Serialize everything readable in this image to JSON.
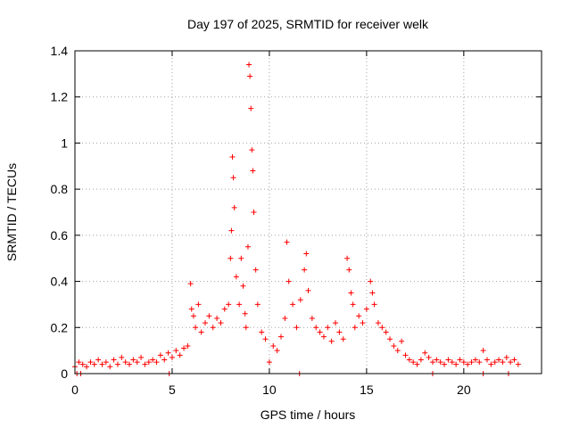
{
  "chart_data": {
    "type": "scatter",
    "title": "Day 197 of 2025, SRMTID for receiver welk",
    "xlabel": "GPS time / hours",
    "ylabel": "SRMTID / TECUs",
    "xlim": [
      0,
      24
    ],
    "ylim": [
      0,
      1.4
    ],
    "xticks": [
      0,
      5,
      10,
      15,
      20
    ],
    "xtick_labels": [
      "0",
      "5",
      "10",
      "15",
      "20"
    ],
    "yticks": [
      0,
      0.2,
      0.4,
      0.6,
      0.8,
      1.0,
      1.2,
      1.4
    ],
    "ytick_labels": [
      "0",
      "0.2",
      "0.4",
      "0.6",
      "0.8",
      "1",
      "1.2",
      "1.4"
    ],
    "grid": true,
    "marker": "+",
    "color": "#ff0000",
    "series": [
      {
        "name": "SRMTID",
        "x": [
          0.0,
          0.2,
          0.4,
          0.6,
          0.8,
          1.0,
          1.2,
          1.4,
          1.6,
          1.8,
          2.0,
          2.2,
          2.4,
          2.6,
          2.8,
          3.0,
          3.2,
          3.4,
          3.6,
          3.8,
          4.0,
          4.2,
          4.4,
          4.6,
          4.8,
          5.0,
          5.2,
          5.4,
          5.6,
          5.8,
          5.95,
          6.0,
          6.1,
          6.2,
          6.35,
          6.5,
          6.7,
          6.9,
          7.1,
          7.3,
          7.5,
          7.7,
          7.9,
          8.0,
          8.05,
          8.1,
          8.15,
          8.2,
          8.3,
          8.45,
          8.55,
          8.65,
          8.75,
          8.8,
          8.9,
          8.95,
          9.0,
          9.05,
          9.1,
          9.15,
          9.2,
          9.3,
          9.4,
          9.6,
          9.8,
          10.0,
          10.2,
          10.4,
          10.6,
          10.8,
          10.9,
          11.0,
          11.2,
          11.4,
          11.6,
          11.8,
          11.9,
          12.0,
          12.2,
          12.4,
          12.6,
          12.8,
          13.0,
          13.2,
          13.4,
          13.6,
          13.8,
          14.0,
          14.1,
          14.2,
          14.3,
          14.4,
          14.6,
          14.8,
          15.0,
          15.2,
          15.3,
          15.4,
          15.6,
          15.8,
          16.0,
          16.2,
          16.4,
          16.6,
          16.8,
          17.0,
          17.2,
          17.4,
          17.6,
          17.8,
          18.0,
          18.2,
          18.4,
          18.6,
          18.8,
          19.0,
          19.2,
          19.4,
          19.6,
          19.8,
          20.0,
          20.2,
          20.4,
          20.6,
          20.8,
          21.0,
          21.2,
          21.4,
          21.6,
          21.8,
          22.0,
          22.2,
          22.4,
          22.6,
          22.8,
          0.1,
          0.3,
          4.85,
          11.55,
          18.4,
          21.0,
          22.3
        ],
        "y": [
          0.03,
          0.05,
          0.04,
          0.03,
          0.05,
          0.04,
          0.06,
          0.04,
          0.05,
          0.03,
          0.06,
          0.04,
          0.07,
          0.05,
          0.04,
          0.06,
          0.05,
          0.07,
          0.04,
          0.05,
          0.06,
          0.05,
          0.08,
          0.06,
          0.09,
          0.07,
          0.1,
          0.08,
          0.11,
          0.12,
          0.39,
          0.28,
          0.25,
          0.2,
          0.3,
          0.18,
          0.22,
          0.25,
          0.2,
          0.24,
          0.22,
          0.28,
          0.3,
          0.5,
          0.62,
          0.94,
          0.85,
          0.72,
          0.42,
          0.3,
          0.5,
          0.38,
          0.26,
          0.2,
          0.55,
          1.34,
          1.29,
          1.15,
          0.97,
          0.88,
          0.7,
          0.45,
          0.3,
          0.18,
          0.15,
          0.05,
          0.12,
          0.1,
          0.16,
          0.24,
          0.57,
          0.4,
          0.3,
          0.2,
          0.32,
          0.45,
          0.52,
          0.36,
          0.24,
          0.2,
          0.18,
          0.16,
          0.2,
          0.14,
          0.22,
          0.18,
          0.15,
          0.5,
          0.45,
          0.35,
          0.3,
          0.2,
          0.25,
          0.22,
          0.28,
          0.4,
          0.35,
          0.3,
          0.22,
          0.2,
          0.18,
          0.15,
          0.12,
          0.1,
          0.14,
          0.08,
          0.06,
          0.05,
          0.04,
          0.06,
          0.09,
          0.07,
          0.05,
          0.06,
          0.05,
          0.04,
          0.06,
          0.05,
          0.04,
          0.06,
          0.05,
          0.04,
          0.05,
          0.06,
          0.05,
          0.1,
          0.06,
          0.04,
          0.05,
          0.06,
          0.05,
          0.07,
          0.05,
          0.06,
          0.04,
          0.0,
          0.0,
          0.0,
          0.0,
          0.0,
          0.0,
          0.0
        ]
      }
    ]
  }
}
